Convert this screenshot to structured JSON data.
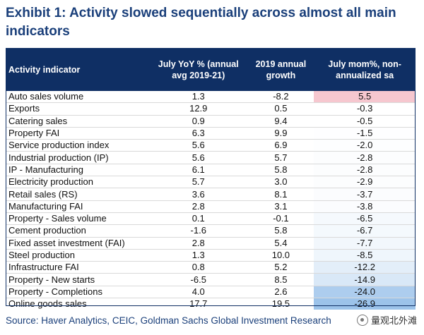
{
  "title": "Exhibit 1: Activity slowed sequentially across almost all main indicators",
  "headers": {
    "indicator": "Activity indicator",
    "yoy": "July YoY % (annual avg 2019-21)",
    "growth": "2019 annual growth",
    "mom": "July mom%, non-annualized sa"
  },
  "rows": [
    {
      "indicator": "Auto sales volume",
      "yoy": "1.3",
      "growth": "-8.2",
      "mom": "5.5"
    },
    {
      "indicator": "Exports",
      "yoy": "12.9",
      "growth": "0.5",
      "mom": "-0.3"
    },
    {
      "indicator": "Catering sales",
      "yoy": "0.9",
      "growth": "9.4",
      "mom": "-0.5"
    },
    {
      "indicator": "Property FAI",
      "yoy": "6.3",
      "growth": "9.9",
      "mom": "-1.5"
    },
    {
      "indicator": "Service production index",
      "yoy": "5.6",
      "growth": "6.9",
      "mom": "-2.0"
    },
    {
      "indicator": "Industrial production (IP)",
      "yoy": "5.6",
      "growth": "5.7",
      "mom": "-2.8"
    },
    {
      "indicator": "IP - Manufacturing",
      "yoy": "6.1",
      "growth": "5.8",
      "mom": "-2.8"
    },
    {
      "indicator": "Electricity production",
      "yoy": "5.7",
      "growth": "3.0",
      "mom": "-2.9"
    },
    {
      "indicator": "Retail sales (RS)",
      "yoy": "3.6",
      "growth": "8.1",
      "mom": "-3.7"
    },
    {
      "indicator": "Manufacturing FAI",
      "yoy": "2.8",
      "growth": "3.1",
      "mom": "-3.8"
    },
    {
      "indicator": "Property - Sales volume",
      "yoy": "0.1",
      "growth": "-0.1",
      "mom": "-6.5"
    },
    {
      "indicator": "Cement production",
      "yoy": "-1.6",
      "growth": "5.8",
      "mom": "-6.7"
    },
    {
      "indicator": "Fixed asset investment (FAI)",
      "yoy": "2.8",
      "growth": "5.4",
      "mom": "-7.7"
    },
    {
      "indicator": "Steel production",
      "yoy": "1.3",
      "growth": "10.0",
      "mom": "-8.5"
    },
    {
      "indicator": "Infrastructure FAI",
      "yoy": "0.8",
      "growth": "5.2",
      "mom": "-12.2"
    },
    {
      "indicator": "Property - New starts",
      "yoy": "-6.5",
      "growth": "8.5",
      "mom": "-14.9"
    },
    {
      "indicator": "Property - Completions",
      "yoy": "4.0",
      "growth": "2.6",
      "mom": "-24.0"
    },
    {
      "indicator": "Online goods sales",
      "yoy": "17.7",
      "growth": "19.5",
      "mom": "-26.9"
    }
  ],
  "mom_colors": {
    "positive": "#f6c7cf",
    "negative_low": "#ffffff",
    "negative_high": "#9cc3ea"
  },
  "source": "Source: Haver Analytics, CEIC, Goldman Sachs Global Investment Research",
  "watermark": "量观北外滩"
}
